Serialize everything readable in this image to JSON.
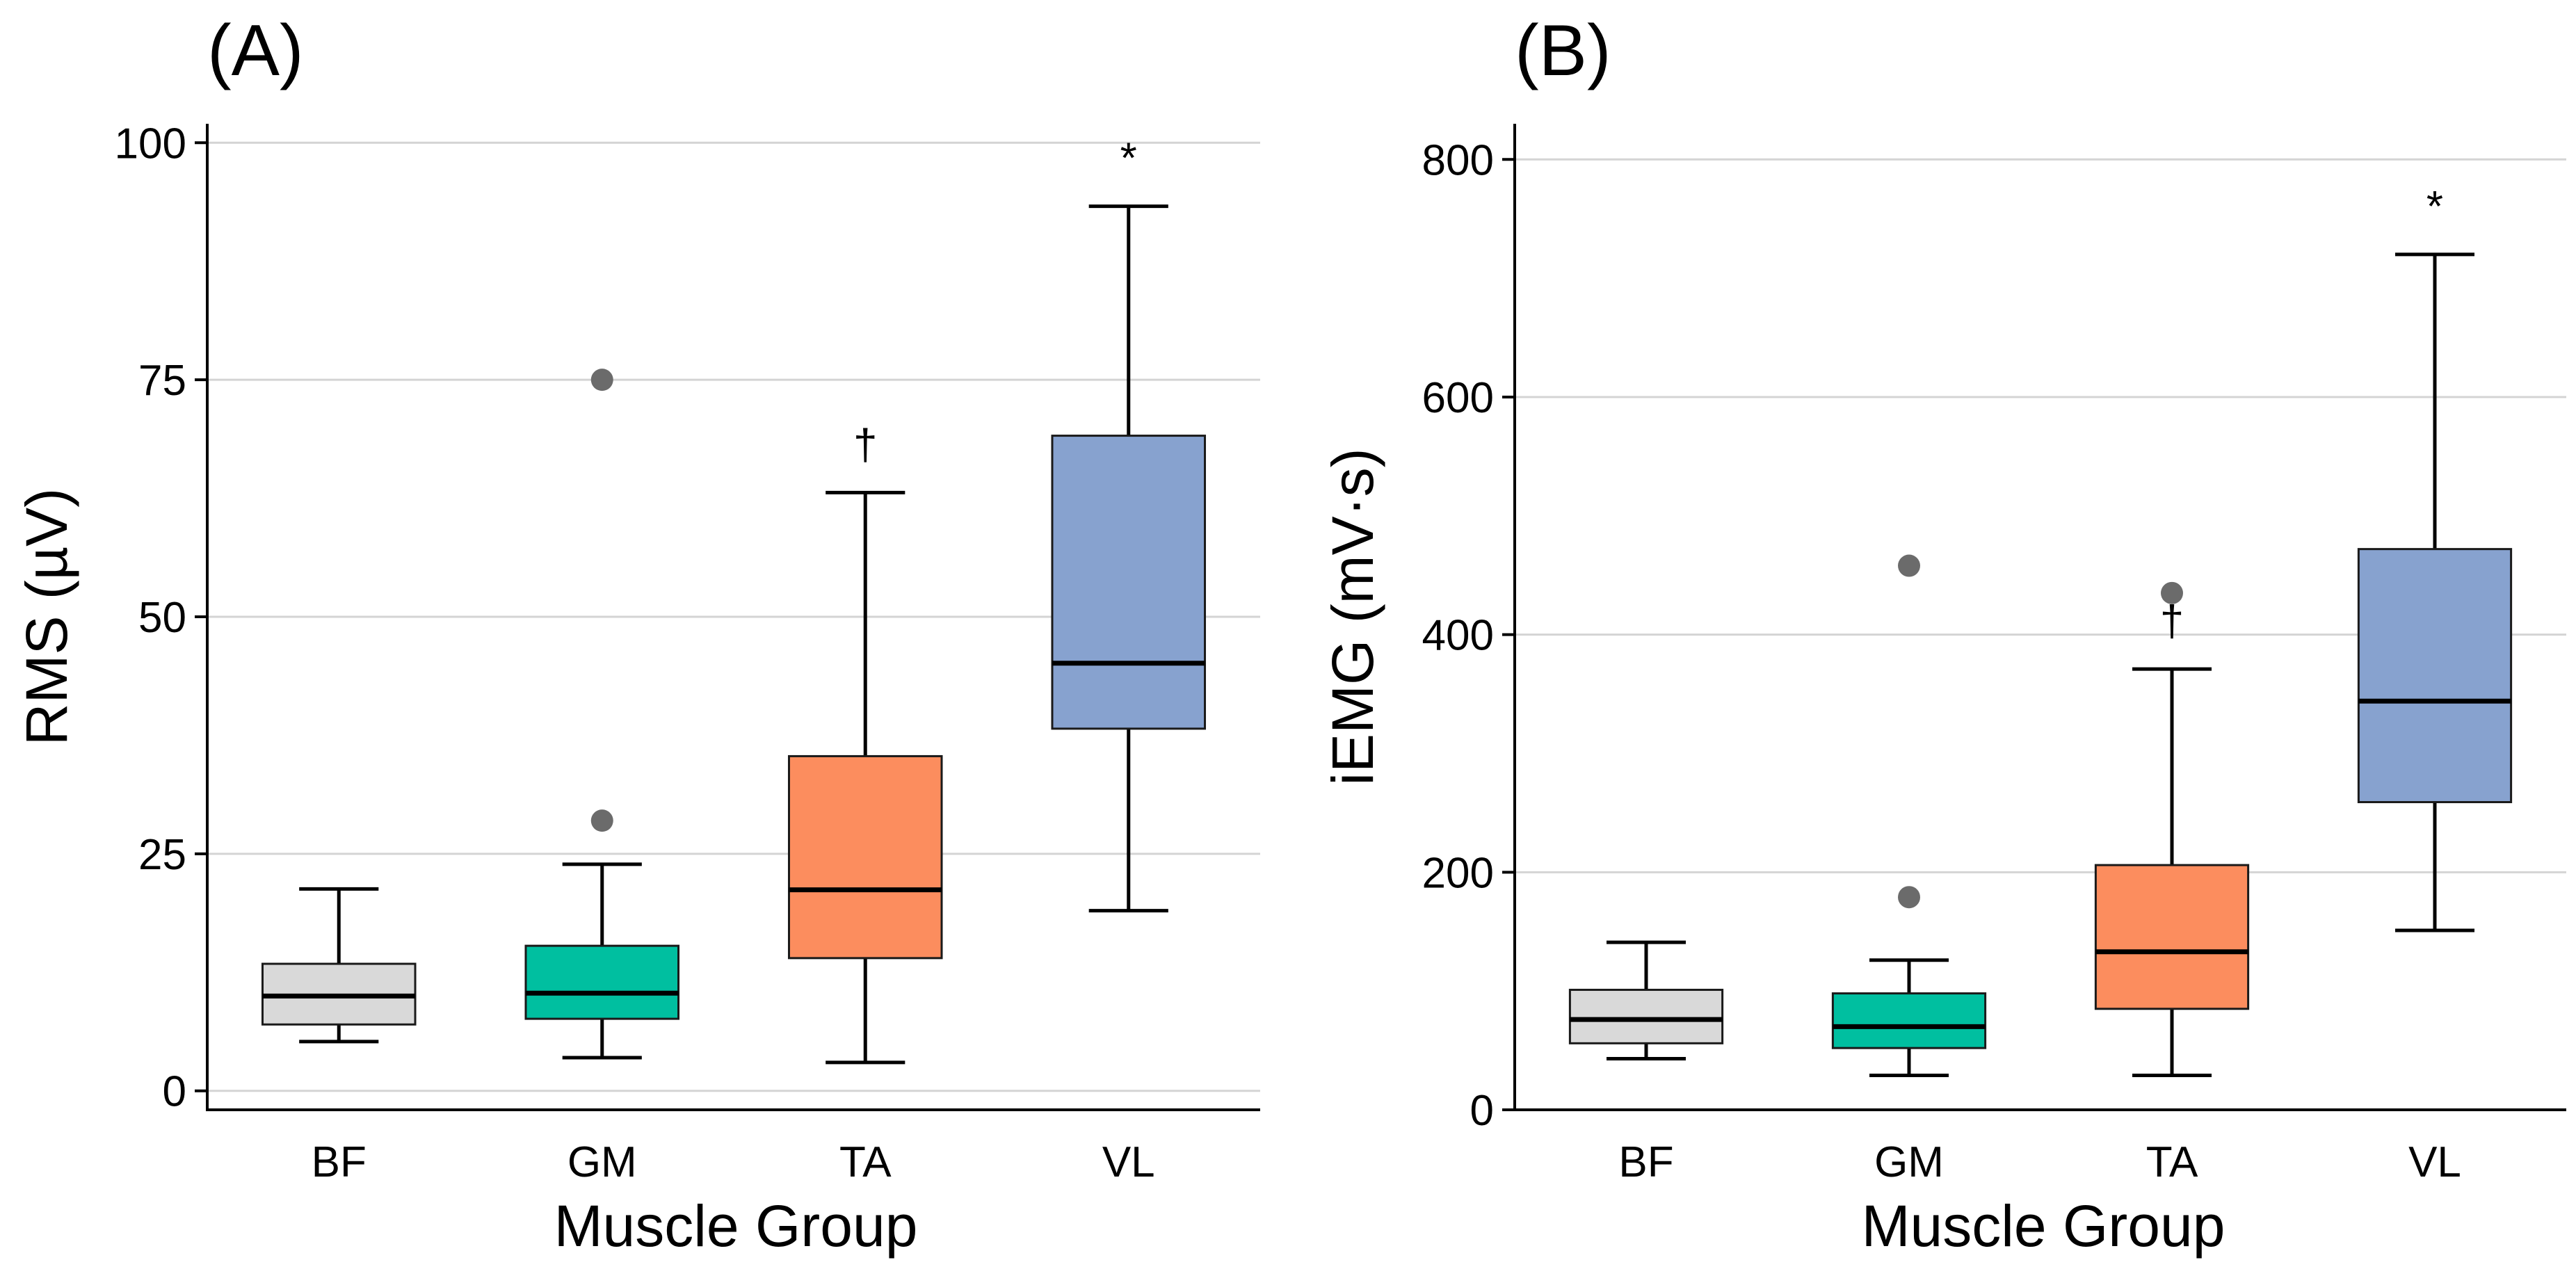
{
  "chart_data": [
    {
      "type": "box",
      "panel_label": "(A)",
      "ylabel": "RMS (µV)",
      "xlabel": "Muscle Group",
      "ylim": [
        -2,
        102
      ],
      "yticks": [
        0,
        25,
        50,
        75,
        100
      ],
      "ytick_labels": [
        "0",
        "25",
        "50",
        "75",
        "100"
      ],
      "grid": "horizontal",
      "categories": [
        "BF",
        "GM",
        "TA",
        "VL"
      ],
      "colors": [
        "#d9d9d9",
        "#00bfa0",
        "#fc8d5e",
        "#87a2cf"
      ],
      "boxes": [
        {
          "category": "BF",
          "whisker_low": 5.2,
          "q1": 7.0,
          "median": 10.0,
          "q3": 13.4,
          "whisker_high": 21.3,
          "outliers": [],
          "annotation": ""
        },
        {
          "category": "GM",
          "whisker_low": 3.5,
          "q1": 7.6,
          "median": 10.3,
          "q3": 15.3,
          "whisker_high": 23.9,
          "outliers": [
            28.5,
            75.0
          ],
          "annotation": ""
        },
        {
          "category": "TA",
          "whisker_low": 3.0,
          "q1": 14.0,
          "median": 21.2,
          "q3": 35.3,
          "whisker_high": 63.1,
          "outliers": [],
          "annotation": "†"
        },
        {
          "category": "VL",
          "whisker_low": 19.0,
          "q1": 38.2,
          "median": 45.1,
          "q3": 69.1,
          "whisker_high": 93.3,
          "outliers": [],
          "annotation": "*"
        }
      ]
    },
    {
      "type": "box",
      "panel_label": "(B)",
      "ylabel": "iEMG (mV·s)",
      "xlabel": "Muscle Group",
      "ylim": [
        0,
        830
      ],
      "yticks": [
        0,
        200,
        400,
        600,
        800
      ],
      "ytick_labels": [
        "0",
        "200",
        "400",
        "600",
        "800"
      ],
      "grid": "horizontal",
      "categories": [
        "BF",
        "GM",
        "TA",
        "VL"
      ],
      "colors": [
        "#d9d9d9",
        "#00bfa0",
        "#fc8d5e",
        "#87a2cf"
      ],
      "boxes": [
        {
          "category": "BF",
          "whisker_low": 43,
          "q1": 56,
          "median": 76,
          "q3": 101,
          "whisker_high": 141,
          "outliers": [],
          "annotation": ""
        },
        {
          "category": "GM",
          "whisker_low": 29,
          "q1": 52,
          "median": 70,
          "q3": 98,
          "whisker_high": 126,
          "outliers": [
            179,
            458
          ],
          "annotation": ""
        },
        {
          "category": "TA",
          "whisker_low": 29,
          "q1": 85,
          "median": 133,
          "q3": 206,
          "whisker_high": 371,
          "outliers": [
            435
          ],
          "annotation": "†"
        },
        {
          "category": "VL",
          "whisker_low": 151,
          "q1": 259,
          "median": 344,
          "q3": 472,
          "whisker_high": 720,
          "outliers": [],
          "annotation": "*"
        }
      ]
    }
  ]
}
